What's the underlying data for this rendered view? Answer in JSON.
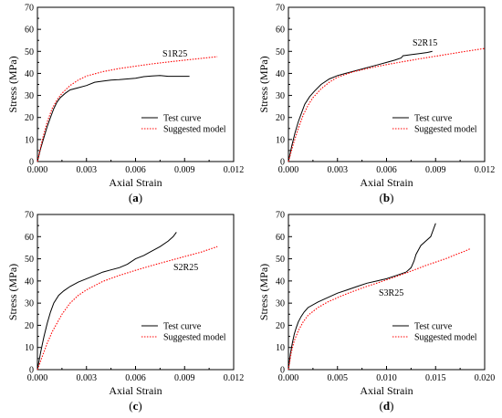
{
  "chart_data": [
    {
      "type": "line",
      "panel_label": "(a)",
      "annotation": "S1R25",
      "xlabel": "Axial Strain",
      "ylabel": "Stress (MPa)",
      "xlim": [
        0,
        0.012
      ],
      "ylim": [
        0,
        70
      ],
      "xticks": [
        "0.000",
        "0.003",
        "0.006",
        "0.009",
        "0.012"
      ],
      "yticks": [
        "0",
        "10",
        "20",
        "30",
        "40",
        "50",
        "60",
        "70"
      ],
      "legend_position": "lower-right",
      "series": [
        {
          "name": "Test curve",
          "color": "#000000",
          "style": "solid",
          "x": [
            0,
            0.0002,
            0.0004,
            0.0006,
            0.0008,
            0.001,
            0.0012,
            0.0014,
            0.0017,
            0.002,
            0.0025,
            0.003,
            0.0035,
            0.004,
            0.0045,
            0.005,
            0.0055,
            0.006,
            0.0065,
            0.007,
            0.0075,
            0.008,
            0.0085,
            0.009,
            0.0093
          ],
          "y": [
            0,
            6,
            11,
            16,
            20,
            24,
            27,
            29,
            31,
            32.5,
            33.5,
            34.5,
            36,
            36.5,
            37,
            37.2,
            37.5,
            37.8,
            38.5,
            38.8,
            39,
            38.7,
            38.7,
            38.7,
            38.7
          ]
        },
        {
          "name": "Suggested model",
          "color": "#ff0000",
          "style": "dotted",
          "x": [
            0,
            0.0003,
            0.0006,
            0.0009,
            0.0012,
            0.0015,
            0.002,
            0.0025,
            0.003,
            0.004,
            0.005,
            0.006,
            0.007,
            0.008,
            0.009,
            0.01,
            0.011
          ],
          "y": [
            0,
            10,
            18,
            24,
            28,
            31,
            34.5,
            37,
            38.8,
            40.8,
            42.2,
            43.3,
            44.3,
            45.2,
            46,
            46.8,
            47.6
          ]
        }
      ]
    },
    {
      "type": "line",
      "panel_label": "(b)",
      "annotation": "S2R15",
      "xlabel": "Axial Strain",
      "ylabel": "Stress (MPa)",
      "xlim": [
        0,
        0.012
      ],
      "ylim": [
        0,
        70
      ],
      "xticks": [
        "0.000",
        "0.003",
        "0.006",
        "0.009",
        "0.012"
      ],
      "yticks": [
        "0",
        "10",
        "20",
        "30",
        "40",
        "50",
        "60",
        "70"
      ],
      "legend_position": "lower-right",
      "series": [
        {
          "name": "Test curve",
          "color": "#000000",
          "style": "solid",
          "x": [
            0,
            0.0002,
            0.0004,
            0.0006,
            0.0008,
            0.001,
            0.0013,
            0.0016,
            0.002,
            0.0025,
            0.003,
            0.0035,
            0.004,
            0.0045,
            0.005,
            0.0055,
            0.006,
            0.0065,
            0.0069,
            0.007,
            0.0075,
            0.008,
            0.0085,
            0.0088
          ],
          "y": [
            0,
            7,
            13,
            18,
            22,
            26,
            29.5,
            32,
            35,
            37.5,
            39,
            40,
            41,
            42,
            43,
            44,
            45,
            46,
            47,
            48,
            48.5,
            49,
            49.5,
            50
          ]
        },
        {
          "name": "Suggested model",
          "color": "#ff0000",
          "style": "dotted",
          "x": [
            0,
            0.0003,
            0.0006,
            0.0009,
            0.0012,
            0.0015,
            0.002,
            0.0025,
            0.003,
            0.004,
            0.005,
            0.006,
            0.007,
            0.008,
            0.009,
            0.01,
            0.011,
            0.012
          ],
          "y": [
            0,
            8,
            15,
            21,
            25.5,
            29,
            33,
            36,
            38.3,
            40.8,
            42.5,
            44,
            45.3,
            46.6,
            47.8,
            49,
            50.2,
            51.3
          ]
        }
      ]
    },
    {
      "type": "line",
      "panel_label": "(c)",
      "annotation": "S2R25",
      "xlabel": "Axial Strain",
      "ylabel": "Stress (MPa)",
      "xlim": [
        0,
        0.012
      ],
      "ylim": [
        0,
        70
      ],
      "xticks": [
        "0.000",
        "0.003",
        "0.006",
        "0.009",
        "0.012"
      ],
      "yticks": [
        "0",
        "10",
        "20",
        "30",
        "40",
        "50",
        "60",
        "70"
      ],
      "legend_position": "lower-right",
      "series": [
        {
          "name": "Test curve",
          "color": "#000000",
          "style": "solid",
          "x": [
            0,
            0.0002,
            0.0004,
            0.0006,
            0.0008,
            0.001,
            0.0013,
            0.0016,
            0.002,
            0.0025,
            0.003,
            0.0035,
            0.004,
            0.0045,
            0.005,
            0.0055,
            0.006,
            0.0065,
            0.007,
            0.0075,
            0.008,
            0.0083,
            0.0085
          ],
          "y": [
            0,
            8,
            15,
            21,
            26,
            30,
            33.5,
            35.5,
            37.5,
            39.5,
            41,
            42.5,
            44,
            45,
            46,
            47.5,
            50,
            51.5,
            53.5,
            55.5,
            58,
            60,
            62
          ]
        },
        {
          "name": "Suggested model",
          "color": "#ff0000",
          "style": "dotted",
          "x": [
            0,
            0.0003,
            0.0006,
            0.0009,
            0.0012,
            0.0015,
            0.002,
            0.0025,
            0.003,
            0.004,
            0.005,
            0.006,
            0.007,
            0.008,
            0.009,
            0.01,
            0.011
          ],
          "y": [
            0,
            6,
            12,
            17,
            21,
            25,
            30,
            33.5,
            36,
            39.8,
            42.5,
            44.8,
            47,
            49,
            51,
            53,
            55.5
          ]
        }
      ]
    },
    {
      "type": "line",
      "panel_label": "(d)",
      "annotation": "S3R25",
      "xlabel": "Axial Strain",
      "ylabel": "Stress (MPa)",
      "xlim": [
        0,
        0.02
      ],
      "ylim": [
        0,
        70
      ],
      "xticks": [
        "0.000",
        "0.005",
        "0.010",
        "0.015",
        "0.020"
      ],
      "yticks": [
        "0",
        "10",
        "20",
        "30",
        "40",
        "50",
        "60",
        "70"
      ],
      "legend_position": "lower-right",
      "series": [
        {
          "name": "Test curve",
          "color": "#000000",
          "style": "solid",
          "x": [
            0,
            0.0002,
            0.0004,
            0.0006,
            0.0008,
            0.001,
            0.0013,
            0.0016,
            0.002,
            0.003,
            0.004,
            0.005,
            0.006,
            0.007,
            0.008,
            0.009,
            0.01,
            0.011,
            0.012,
            0.0125,
            0.0128,
            0.013,
            0.0135,
            0.014,
            0.0145,
            0.015
          ],
          "y": [
            0,
            7,
            12,
            16,
            19,
            21.5,
            24,
            26,
            28,
            30.5,
            32.5,
            34.5,
            36,
            37.5,
            39,
            40,
            41,
            42.5,
            44,
            46,
            49,
            52,
            56,
            58,
            60,
            66
          ]
        },
        {
          "name": "Suggested model",
          "color": "#ff0000",
          "style": "dotted",
          "x": [
            0,
            0.0003,
            0.0006,
            0.001,
            0.0015,
            0.002,
            0.003,
            0.004,
            0.005,
            0.006,
            0.007,
            0.008,
            0.009,
            0.01,
            0.011,
            0.012,
            0.013,
            0.014,
            0.015,
            0.016,
            0.017,
            0.018,
            0.0185
          ],
          "y": [
            0,
            8,
            13,
            17.5,
            21.5,
            24.5,
            28,
            30.5,
            32.5,
            34.3,
            36,
            37.6,
            39,
            40.5,
            42,
            43.6,
            45.3,
            47,
            48.5,
            50,
            51.8,
            53.5,
            54.5
          ]
        }
      ]
    }
  ]
}
